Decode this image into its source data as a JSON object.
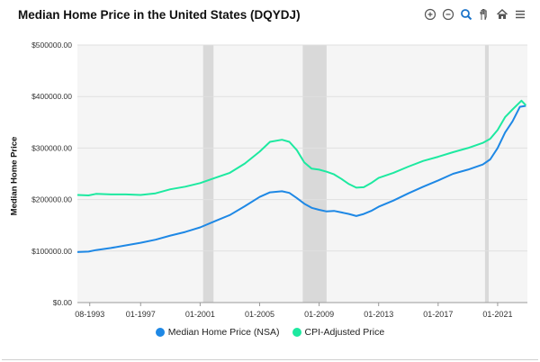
{
  "window": {
    "title": "Median Home Price in the United States (DQYDJ)"
  },
  "toolbar": {
    "icons": [
      "zoom-in-icon",
      "zoom-out-icon",
      "magnify-icon",
      "pan-hand-icon",
      "home-icon",
      "menu-icon"
    ]
  },
  "colors": {
    "nsa": "#1e88e5",
    "cpi": "#1de9a0",
    "plot_bg": "#f5f5f5",
    "recession": "#d9d9d9",
    "grid": "#e0e0e0"
  },
  "chart_data": {
    "type": "line",
    "title": "Median Home Price in the United States (DQYDJ)",
    "xlabel": "",
    "ylabel": "Median Home Price",
    "ylim": [
      0,
      500000
    ],
    "xlim": [
      1992.75,
      2023.0
    ],
    "y_ticks": [
      "$0.00",
      "$100000.00",
      "$200000.00",
      "$300000.00",
      "$400000.00",
      "$500000.00"
    ],
    "x_ticks": [
      "08-1993",
      "01-1997",
      "01-2001",
      "01-2005",
      "01-2009",
      "01-2013",
      "01-2017",
      "01-2021"
    ],
    "recessions": [
      [
        2001.2,
        2001.9
      ],
      [
        2007.9,
        2009.5
      ],
      [
        2020.15,
        2020.4
      ]
    ],
    "grid": true,
    "legend_position": "bottom",
    "series": [
      {
        "name": "Median Home Price (NSA)",
        "points": [
          [
            1992.75,
            98000
          ],
          [
            1993.5,
            99000
          ],
          [
            1994,
            102000
          ],
          [
            1995,
            106000
          ],
          [
            1996,
            111000
          ],
          [
            1997,
            116000
          ],
          [
            1998,
            122000
          ],
          [
            1999,
            130000
          ],
          [
            2000,
            137000
          ],
          [
            2001,
            146000
          ],
          [
            2002,
            158000
          ],
          [
            2003,
            170000
          ],
          [
            2004,
            187000
          ],
          [
            2005,
            205000
          ],
          [
            2005.7,
            214000
          ],
          [
            2006.5,
            216000
          ],
          [
            2007,
            213000
          ],
          [
            2007.5,
            203000
          ],
          [
            2008,
            192000
          ],
          [
            2008.5,
            184000
          ],
          [
            2009,
            180000
          ],
          [
            2009.5,
            177000
          ],
          [
            2010,
            178000
          ],
          [
            2010.5,
            175000
          ],
          [
            2011,
            172000
          ],
          [
            2011.5,
            168000
          ],
          [
            2012,
            172000
          ],
          [
            2012.5,
            178000
          ],
          [
            2013,
            186000
          ],
          [
            2014,
            198000
          ],
          [
            2015,
            212000
          ],
          [
            2016,
            225000
          ],
          [
            2017,
            237000
          ],
          [
            2018,
            250000
          ],
          [
            2019,
            258000
          ],
          [
            2020,
            268000
          ],
          [
            2020.5,
            278000
          ],
          [
            2021,
            300000
          ],
          [
            2021.5,
            330000
          ],
          [
            2022,
            352000
          ],
          [
            2022.5,
            380000
          ],
          [
            2022.9,
            382000
          ]
        ]
      },
      {
        "name": "CPI-Adjusted Price",
        "points": [
          [
            1992.75,
            209000
          ],
          [
            1993.5,
            208000
          ],
          [
            1994,
            211000
          ],
          [
            1995,
            210000
          ],
          [
            1996,
            210000
          ],
          [
            1997,
            209000
          ],
          [
            1998,
            212000
          ],
          [
            1999,
            220000
          ],
          [
            2000,
            225000
          ],
          [
            2001,
            232000
          ],
          [
            2002,
            242000
          ],
          [
            2003,
            252000
          ],
          [
            2004,
            270000
          ],
          [
            2005,
            293000
          ],
          [
            2005.7,
            312000
          ],
          [
            2006.5,
            316000
          ],
          [
            2007,
            312000
          ],
          [
            2007.5,
            296000
          ],
          [
            2008,
            272000
          ],
          [
            2008.5,
            260000
          ],
          [
            2009,
            258000
          ],
          [
            2009.5,
            254000
          ],
          [
            2010,
            249000
          ],
          [
            2010.5,
            240000
          ],
          [
            2011,
            230000
          ],
          [
            2011.5,
            223000
          ],
          [
            2012,
            224000
          ],
          [
            2012.5,
            232000
          ],
          [
            2013,
            242000
          ],
          [
            2014,
            252000
          ],
          [
            2015,
            264000
          ],
          [
            2016,
            275000
          ],
          [
            2017,
            283000
          ],
          [
            2018,
            292000
          ],
          [
            2019,
            300000
          ],
          [
            2020,
            310000
          ],
          [
            2020.5,
            318000
          ],
          [
            2021,
            335000
          ],
          [
            2021.5,
            360000
          ],
          [
            2022,
            375000
          ],
          [
            2022.6,
            392000
          ],
          [
            2022.9,
            383000
          ]
        ]
      }
    ]
  }
}
